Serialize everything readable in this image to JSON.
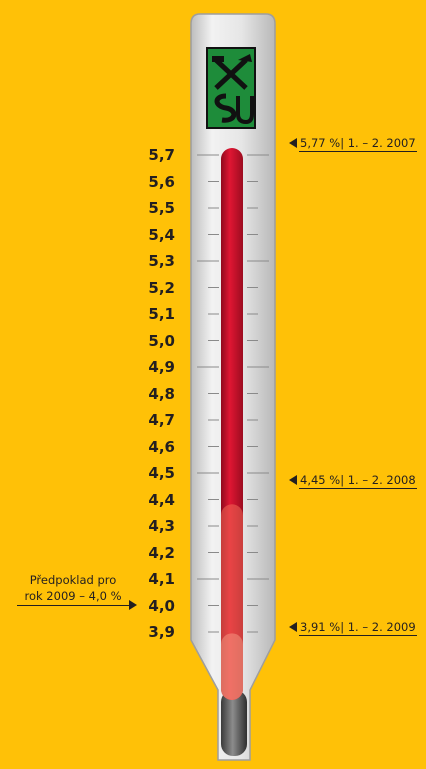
{
  "chart_data": {
    "type": "thermometer",
    "unit": "%",
    "ticks": [
      "5,7",
      "5,6",
      "5,5",
      "5,4",
      "5,3",
      "5,2",
      "5,1",
      "5,0",
      "4,9",
      "4,8",
      "4,7",
      "4,6",
      "4,5",
      "4,4",
      "4,3",
      "4,2",
      "4,1",
      "4,0",
      "3,9"
    ],
    "ylim": [
      3.9,
      5.7
    ],
    "series": [
      {
        "period": "1. – 2. 2007",
        "value": 5.77,
        "label": "5,77 %| 1. – 2. 2007"
      },
      {
        "period": "1. – 2. 2008",
        "value": 4.45,
        "label": "4,45 %| 1. – 2. 2008"
      },
      {
        "period": "1. – 2. 2009",
        "value": 3.91,
        "label": "3,91 %| 1. – 2. 2009"
      }
    ],
    "forecast": {
      "value": 4.0,
      "line1": "Předpoklad pro",
      "line2": "rok 2009 – 4,0 %"
    },
    "colors": {
      "background": "#FFC107",
      "mercury": "#C8102E",
      "mercury_translucent": "#E8604F",
      "tube": "#DCDCDC",
      "logo_bg": "#1E8C3A"
    }
  },
  "logo": {
    "name": "CSU logo"
  }
}
